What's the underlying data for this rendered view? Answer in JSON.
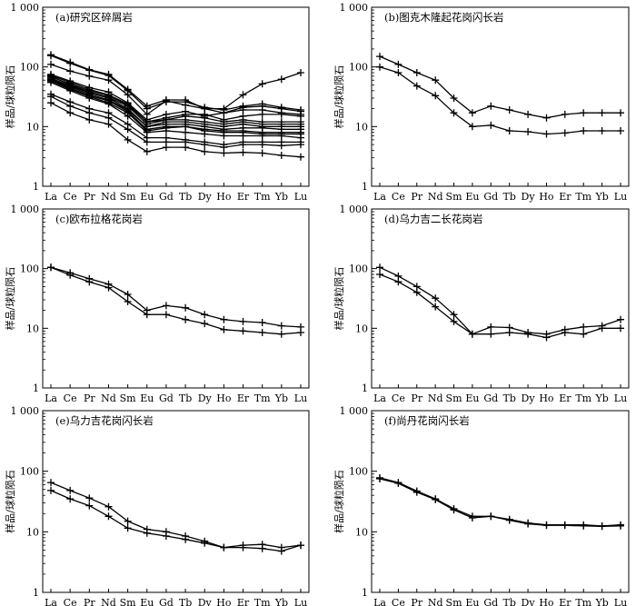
{
  "chart_data": [
    {
      "type": "line",
      "title": "(a)研究区碎屑岩",
      "ylabel": "样品/球粒陨石",
      "yscale": "log",
      "ylim": [
        1,
        1000
      ],
      "yticks": [
        "1",
        "10",
        "100",
        "1 000"
      ],
      "categories": [
        "La",
        "Ce",
        "Pr",
        "Nd",
        "Sm",
        "Eu",
        "Gd",
        "Tb",
        "Dy",
        "Ho",
        "Er",
        "Tm",
        "Yb",
        "Lu"
      ],
      "series": [
        {
          "values": [
            160,
            120,
            90,
            75,
            42,
            22,
            28,
            28,
            20,
            20,
            34,
            52,
            62,
            80
          ]
        },
        {
          "values": [
            155,
            115,
            88,
            72,
            40,
            20,
            26,
            26,
            21,
            19,
            22,
            24,
            21,
            19
          ]
        },
        {
          "values": [
            110,
            85,
            70,
            60,
            34,
            16,
            27,
            23,
            20,
            17,
            21,
            22,
            20,
            18
          ]
        },
        {
          "values": [
            75,
            58,
            45,
            38,
            25,
            13,
            16,
            18,
            15,
            17,
            19,
            19,
            17,
            16
          ]
        },
        {
          "values": [
            72,
            55,
            42,
            34,
            24,
            12,
            14,
            16,
            16,
            13,
            15,
            16,
            16,
            15
          ]
        },
        {
          "values": [
            68,
            52,
            40,
            33,
            23,
            12,
            13,
            15,
            14,
            12,
            13,
            12,
            12,
            12
          ]
        },
        {
          "values": [
            70,
            50,
            38,
            31,
            22,
            11,
            13,
            13,
            12,
            11,
            12,
            11,
            11,
            11
          ]
        },
        {
          "values": [
            65,
            48,
            37,
            30,
            20,
            10,
            12,
            12,
            11,
            10,
            11,
            10,
            10,
            10
          ]
        },
        {
          "values": [
            62,
            46,
            35,
            28,
            19,
            10,
            11,
            11,
            10,
            9,
            9.5,
            9.5,
            9,
            9
          ]
        },
        {
          "values": [
            60,
            44,
            33,
            27,
            18,
            9,
            10,
            10,
            9,
            8.5,
            8.5,
            8,
            8,
            8
          ]
        },
        {
          "values": [
            58,
            42,
            32,
            25,
            17,
            8.5,
            9.5,
            10,
            8.5,
            8,
            8,
            7.5,
            7.5,
            7.5
          ]
        },
        {
          "values": [
            55,
            40,
            30,
            24,
            15,
            8,
            8.5,
            8,
            7.5,
            7,
            7,
            7,
            7,
            6.5
          ]
        },
        {
          "values": [
            35,
            26,
            20,
            17,
            11,
            6.5,
            6.5,
            6,
            5.5,
            5,
            5.5,
            5.5,
            5.5,
            5.5
          ]
        },
        {
          "values": [
            32,
            22,
            17,
            14,
            9,
            5.5,
            5.5,
            5.5,
            5,
            4.5,
            5,
            5,
            4.8,
            5
          ]
        },
        {
          "values": [
            25,
            17,
            13,
            11,
            6,
            3.8,
            4.5,
            4.5,
            3.8,
            3.6,
            3.7,
            3.6,
            3.3,
            3.1
          ]
        }
      ]
    },
    {
      "type": "line",
      "title": "(b)图克木隆起花岗闪长岩",
      "ylabel": "样品/球粒陨石",
      "yscale": "log",
      "ylim": [
        1,
        1000
      ],
      "yticks": [
        "1",
        "10",
        "100",
        "1 000"
      ],
      "categories": [
        "La",
        "Ce",
        "Pr",
        "Nd",
        "Sm",
        "Eu",
        "Gd",
        "Tb",
        "Dy",
        "Ho",
        "Er",
        "Tm",
        "Yb",
        "Lu"
      ],
      "series": [
        {
          "values": [
            150,
            110,
            80,
            60,
            30,
            17,
            22,
            19,
            16,
            14,
            16,
            17,
            17,
            17
          ]
        },
        {
          "values": [
            100,
            80,
            48,
            33,
            17,
            10,
            10.5,
            8.5,
            8.2,
            7.5,
            7.8,
            8.5,
            8.5,
            8.5
          ]
        }
      ]
    },
    {
      "type": "line",
      "title": "(c)欧布拉格花岗岩",
      "ylabel": "样品/球粒陨石",
      "yscale": "log",
      "ylim": [
        1,
        1000
      ],
      "yticks": [
        "1",
        "10",
        "100",
        "1 000"
      ],
      "categories": [
        "La",
        "Ce",
        "Pr",
        "Nd",
        "Sm",
        "Eu",
        "Gd",
        "Tb",
        "Dy",
        "Ho",
        "Er",
        "Tm",
        "Yb",
        "Lu"
      ],
      "series": [
        {
          "values": [
            105,
            85,
            68,
            55,
            37,
            20,
            24,
            22,
            17,
            14,
            13,
            12.5,
            11,
            10.5
          ]
        },
        {
          "values": [
            105,
            78,
            60,
            48,
            28,
            17,
            17,
            14,
            12,
            9.5,
            9,
            8.5,
            8,
            8.5
          ]
        }
      ]
    },
    {
      "type": "line",
      "title": "(d)乌力吉二长花岗岩",
      "ylabel": "样品/球粒陨石",
      "yscale": "log",
      "ylim": [
        1,
        1000
      ],
      "yticks": [
        "1",
        "10",
        "100",
        "1 000"
      ],
      "categories": [
        "La",
        "Ce",
        "Pr",
        "Nd",
        "Sm",
        "Eu",
        "Gd",
        "Tb",
        "Dy",
        "Ho",
        "Er",
        "Tm",
        "Yb",
        "Lu"
      ],
      "series": [
        {
          "values": [
            105,
            75,
            50,
            32,
            17,
            8,
            10.5,
            10.3,
            8.5,
            8,
            9.5,
            10.5,
            11,
            14
          ]
        },
        {
          "values": [
            80,
            60,
            40,
            23,
            13,
            8,
            8,
            8.5,
            8,
            7,
            8.5,
            8,
            10,
            10
          ]
        }
      ]
    },
    {
      "type": "line",
      "title": "(e)乌力吉花岗闪长岩",
      "ylabel": "样品/球粒陨石",
      "yscale": "log",
      "ylim": [
        1,
        1000
      ],
      "yticks": [
        "1",
        "10",
        "100",
        "1 000"
      ],
      "categories": [
        "La",
        "Ce",
        "Pr",
        "Nd",
        "Sm",
        "Eu",
        "Gd",
        "Tb",
        "Dy",
        "Ho",
        "Er",
        "Tm",
        "Yb",
        "Lu"
      ],
      "series": [
        {
          "values": [
            65,
            48,
            36,
            26,
            15,
            11,
            10,
            8.5,
            7,
            5.5,
            6,
            6.2,
            5.5,
            6
          ]
        },
        {
          "values": [
            48,
            35,
            27,
            18,
            11.5,
            9.5,
            8.5,
            7.5,
            6.5,
            5.5,
            5.5,
            5.3,
            4.8,
            6
          ]
        }
      ]
    },
    {
      "type": "line",
      "title": "(f)尚丹花岗闪长岩",
      "ylabel": "样品/球粒陨石",
      "yscale": "log",
      "ylim": [
        1,
        1000
      ],
      "yticks": [
        "1",
        "10",
        "100",
        "1 000"
      ],
      "categories": [
        "La",
        "Ce",
        "Pr",
        "Nd",
        "Sm",
        "Eu",
        "Gd",
        "Tb",
        "Dy",
        "Ho",
        "Er",
        "Tm",
        "Yb",
        "Lu"
      ],
      "series": [
        {
          "values": [
            78,
            65,
            47,
            35,
            24,
            18,
            18,
            16,
            14,
            13,
            13,
            13,
            12.5,
            13
          ]
        },
        {
          "values": [
            75,
            63,
            45,
            34,
            23,
            17,
            18,
            15.5,
            13.5,
            12.8,
            12.8,
            12.5,
            12.3,
            12.5
          ]
        }
      ]
    }
  ]
}
